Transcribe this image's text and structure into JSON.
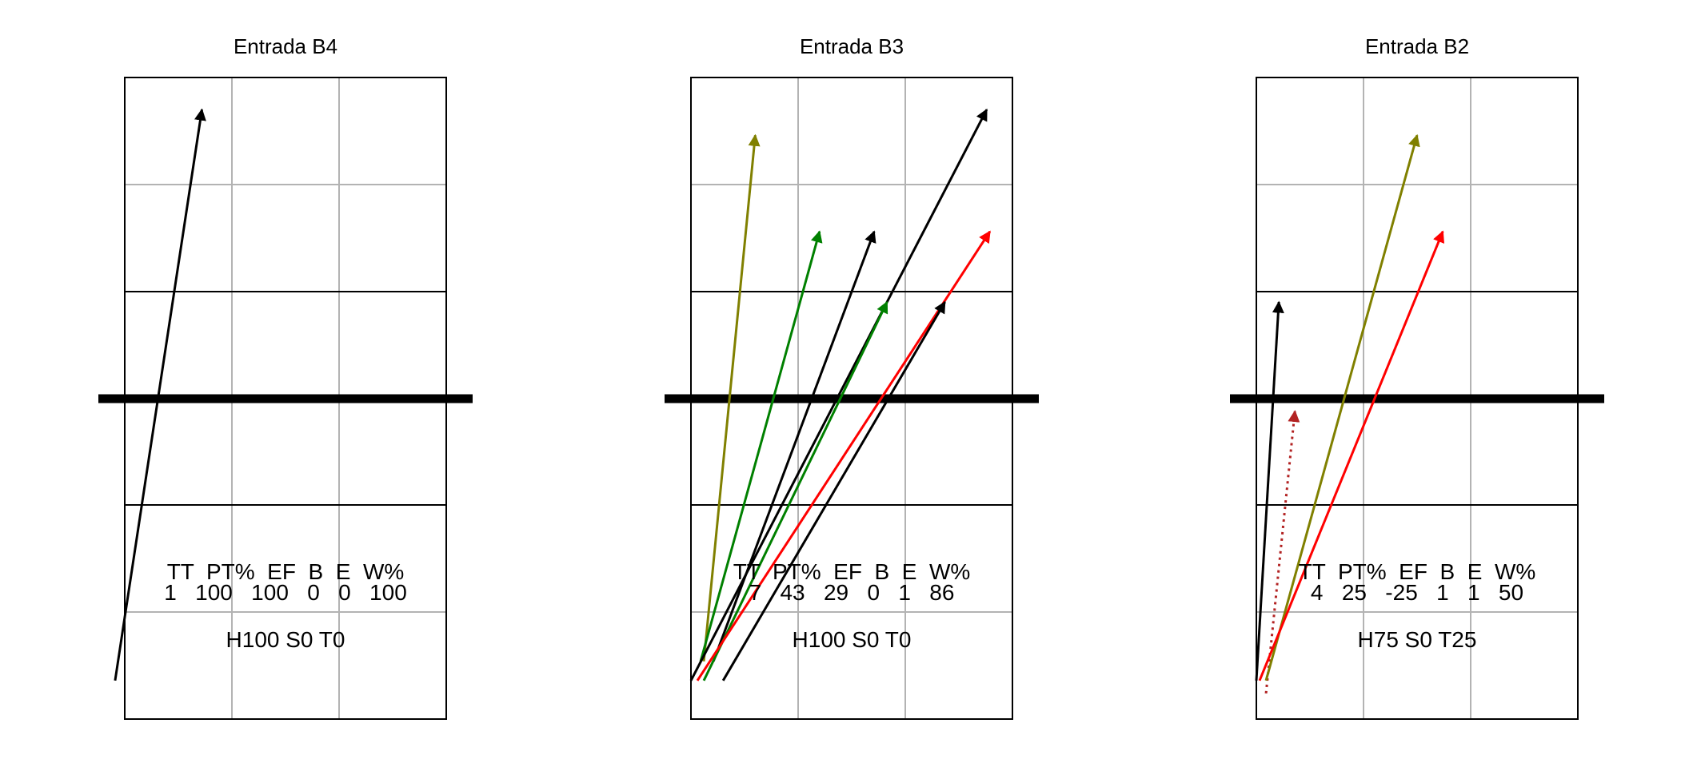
{
  "panels": [
    {
      "title": "Entrada B4",
      "stats_header": "TT  PT%  EF  B  E  W%",
      "stats_values": "1   100   100   0   0   100",
      "zones": "H100 S0 T0",
      "arrows": [
        {
          "color": "#000000",
          "dashed": false,
          "from": [
            -0.03,
            0.94
          ],
          "to": [
            0.24,
            0.05
          ]
        }
      ]
    },
    {
      "title": "Entrada B3",
      "stats_header": "TT  PT%  EF  B  E  W%",
      "stats_values": "7   43   29   0   1   86",
      "zones": "H100 S0 T0",
      "arrows": [
        {
          "color": "#808000",
          "dashed": false,
          "from": [
            0.04,
            0.91
          ],
          "to": [
            0.2,
            0.09
          ]
        },
        {
          "color": "#008000",
          "dashed": false,
          "from": [
            0.03,
            0.91
          ],
          "to": [
            0.4,
            0.24
          ]
        },
        {
          "color": "#000000",
          "dashed": false,
          "from": [
            0.07,
            0.91
          ],
          "to": [
            0.57,
            0.24
          ]
        },
        {
          "color": "#000000",
          "dashed": false,
          "from": [
            0.0,
            0.94
          ],
          "to": [
            0.92,
            0.05
          ]
        },
        {
          "color": "#008000",
          "dashed": false,
          "from": [
            0.04,
            0.94
          ],
          "to": [
            0.61,
            0.35
          ]
        },
        {
          "color": "#ff0000",
          "dashed": false,
          "from": [
            0.02,
            0.94
          ],
          "to": [
            0.93,
            0.24
          ]
        },
        {
          "color": "#000000",
          "dashed": false,
          "from": [
            0.1,
            0.94
          ],
          "to": [
            0.79,
            0.35
          ]
        }
      ]
    },
    {
      "title": "Entrada B2",
      "stats_header": "TT  PT%  EF  B  E  W%",
      "stats_values": "4   25   -25   1   1   50",
      "zones": "H75 S0 T25",
      "arrows": [
        {
          "color": "#000000",
          "dashed": false,
          "from": [
            0.0,
            0.94
          ],
          "to": [
            0.07,
            0.35
          ]
        },
        {
          "color": "#b22222",
          "dashed": true,
          "from": [
            0.03,
            0.96
          ],
          "to": [
            0.12,
            0.52
          ]
        },
        {
          "color": "#808000",
          "dashed": false,
          "from": [
            0.03,
            0.94
          ],
          "to": [
            0.5,
            0.09
          ]
        },
        {
          "color": "#ff0000",
          "dashed": false,
          "from": [
            0.01,
            0.94
          ],
          "to": [
            0.58,
            0.24
          ]
        }
      ]
    }
  ]
}
